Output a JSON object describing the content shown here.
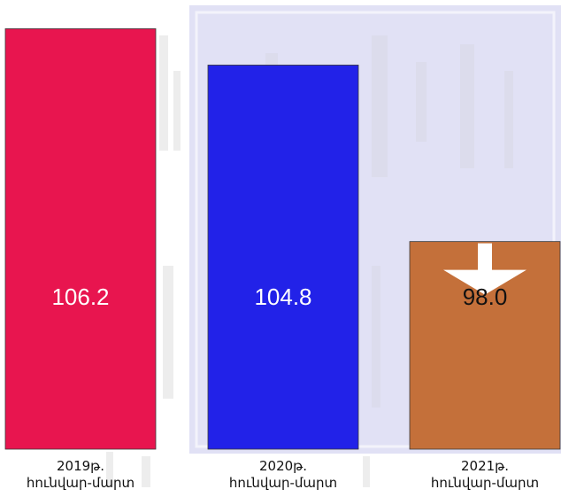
{
  "chart_data": {
    "type": "bar",
    "categories": [
      {
        "year": "2019թ.",
        "period": "հունվար-մարտ"
      },
      {
        "year": "2020թ.",
        "period": "հունվար-մարտ"
      },
      {
        "year": "2021թ.",
        "period": "հունվար-մարտ"
      }
    ],
    "values": [
      106.2,
      104.8,
      98.0
    ],
    "value_labels": [
      "106.2",
      "104.8",
      "98.0"
    ],
    "ylim": [
      90,
      107
    ],
    "colors": [
      "#E8154F",
      "#2222E8",
      "#C4703A"
    ],
    "label_colors": [
      "#ffffff",
      "#ffffff",
      "#111111"
    ],
    "annotations": [
      {
        "type": "down-arrow-icon",
        "category_index": 2
      }
    ],
    "grid": false,
    "legend": "none",
    "title": "",
    "xlabel": "",
    "ylabel": ""
  }
}
